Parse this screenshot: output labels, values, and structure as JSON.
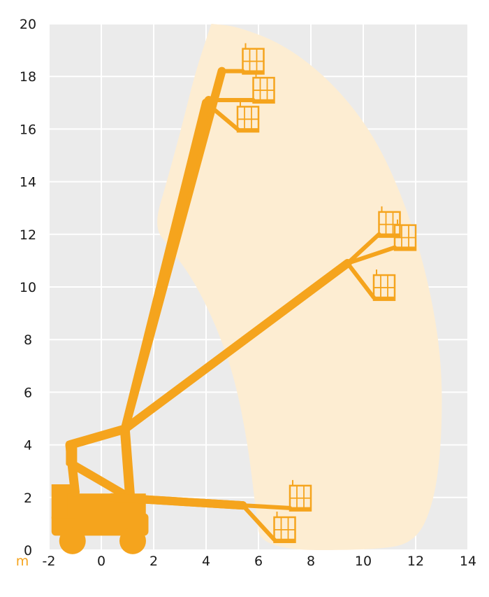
{
  "colors": {
    "background": "#ebebeb",
    "grid": "#ffffff",
    "envelope": "#fdedd2",
    "machine": "#f5a41d",
    "text": "#1a1a1a",
    "unit": "#f5a41d"
  },
  "chart_data": {
    "type": "diagram",
    "title": "",
    "xlabel": "",
    "ylabel": "",
    "unit_label": "m",
    "x_ticks": [
      "-2",
      "0",
      "2",
      "4",
      "6",
      "8",
      "10",
      "12",
      "14"
    ],
    "y_ticks": [
      "0",
      "2",
      "4",
      "6",
      "8",
      "10",
      "12",
      "14",
      "16",
      "18",
      "20"
    ],
    "xlim": [
      -2,
      14
    ],
    "ylim": [
      0,
      20
    ],
    "grid": true,
    "reach_envelope": [
      [
        4.2,
        20
      ],
      [
        5.2,
        19.9
      ],
      [
        7,
        19.2
      ],
      [
        8.8,
        17.8
      ],
      [
        10.4,
        15.8
      ],
      [
        11.6,
        13.2
      ],
      [
        12.5,
        10.2
      ],
      [
        13,
        7.2
      ],
      [
        13,
        4.2
      ],
      [
        12.7,
        1.8
      ],
      [
        12,
        0.3
      ],
      [
        10.5,
        0
      ],
      [
        6.1,
        0
      ],
      [
        5.9,
        1.5
      ],
      [
        5.6,
        4
      ],
      [
        5.1,
        6.5
      ],
      [
        4.4,
        8.5
      ],
      [
        3.5,
        10.3
      ],
      [
        2.6,
        11.5
      ],
      [
        2,
        12.3
      ],
      [
        2.5,
        14
      ],
      [
        3.1,
        16.2
      ],
      [
        3.6,
        18.2
      ],
      [
        4.2,
        20
      ]
    ],
    "boom_positions": [
      {
        "pivot": [
          0.9,
          4.6
        ],
        "tip": [
          4.6,
          18.2
        ],
        "basket": [
          5.4,
          18.1
        ]
      },
      {
        "pivot": [
          0.9,
          4.6
        ],
        "tip": [
          4.1,
          17.1
        ],
        "basket": [
          5.8,
          17.0
        ]
      },
      {
        "pivot": [
          0.9,
          4.6
        ],
        "tip": [
          4.0,
          17.0
        ],
        "basket": [
          5.2,
          15.9
        ]
      },
      {
        "pivot": [
          0.9,
          4.6
        ],
        "tip": [
          9.4,
          10.9
        ],
        "basket": [
          10.6,
          11.9
        ]
      },
      {
        "pivot": [
          0.9,
          4.6
        ],
        "tip": [
          9.4,
          10.9
        ],
        "basket": [
          11.2,
          11.4
        ]
      },
      {
        "pivot": [
          0.9,
          4.6
        ],
        "tip": [
          9.4,
          10.9
        ],
        "basket": [
          10.4,
          9.5
        ]
      },
      {
        "pivot": [
          0.4,
          2.0
        ],
        "tip": [
          5.4,
          1.7
        ],
        "basket": [
          7.2,
          1.5
        ]
      },
      {
        "pivot": [
          0.4,
          2.0
        ],
        "tip": [
          5.4,
          1.7
        ],
        "basket": [
          6.6,
          0.3
        ]
      }
    ],
    "chassis": {
      "x_range": [
        -1.9,
        1.8
      ],
      "wheels_x": [
        -1.1,
        1.2
      ]
    }
  }
}
